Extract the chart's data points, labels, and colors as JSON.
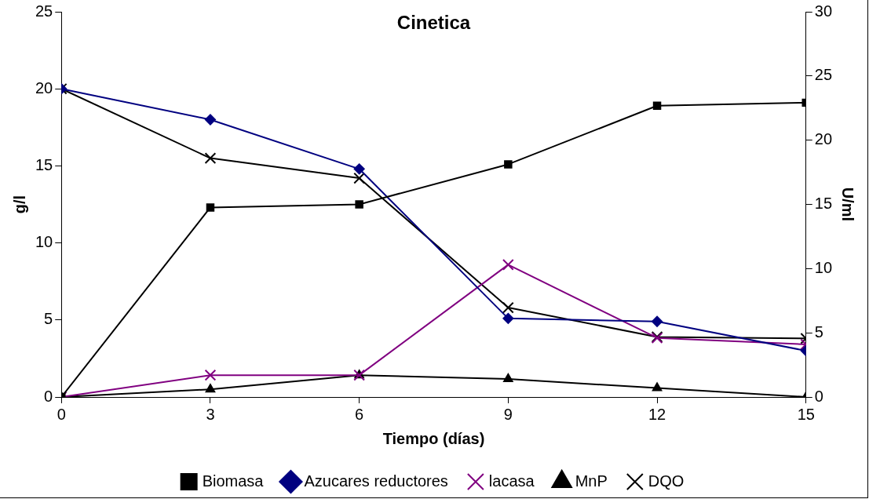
{
  "chart_data": {
    "type": "line",
    "title": "Cinetica",
    "xlabel": "Tiempo (días)",
    "ylabel": "g/l",
    "y2label": "U/ml",
    "x": [
      0,
      3,
      6,
      9,
      12,
      15
    ],
    "xlim": [
      0,
      15
    ],
    "xticks": [
      0,
      3,
      6,
      9,
      12,
      15
    ],
    "ylim": [
      0,
      25
    ],
    "yticks": [
      0,
      5,
      10,
      15,
      20,
      25
    ],
    "y2lim": [
      0,
      30
    ],
    "y2ticks": [
      0,
      5,
      10,
      15,
      20,
      25,
      30
    ],
    "grid": false,
    "legend": "bottom",
    "series": [
      {
        "name": "Biomasa",
        "color": "#000000",
        "marker": "square",
        "values": [
          0,
          12.3,
          12.5,
          15.1,
          18.9,
          19.1
        ]
      },
      {
        "name": "Azucares reductores",
        "color": "#000080",
        "marker": "diamond",
        "values": [
          20,
          18,
          14.8,
          5.1,
          4.9,
          3.0
        ]
      },
      {
        "name": "lacasa",
        "color": "#800080",
        "marker": "cross",
        "axis": "y2",
        "values": [
          0,
          1.7,
          1.7,
          10.3,
          4.6,
          4.1
        ]
      },
      {
        "name": "MnP",
        "color": "#000000",
        "marker": "triangle",
        "axis": "y2",
        "values": [
          0,
          0.6,
          1.7,
          1.4,
          0.7,
          0
        ]
      },
      {
        "name": "DQO",
        "color": "#000000",
        "marker": "cross",
        "values": [
          20,
          15.5,
          14.2,
          5.8,
          3.9,
          3.8
        ]
      }
    ]
  }
}
